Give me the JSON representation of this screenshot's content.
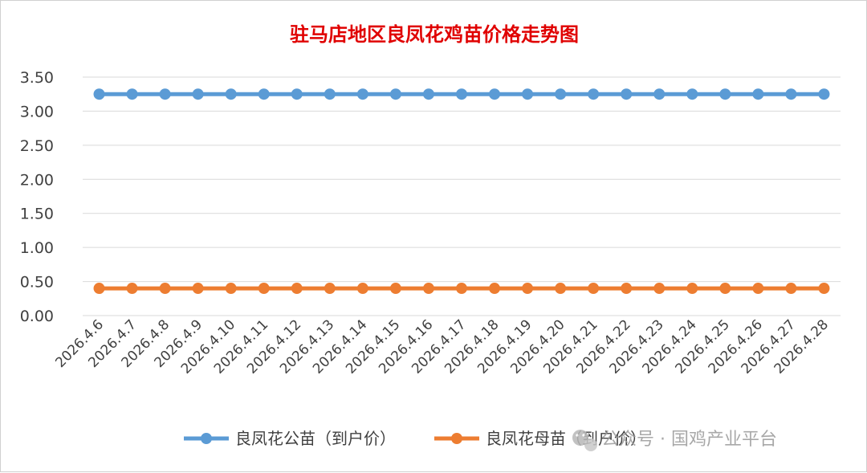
{
  "chart_data": {
    "type": "line",
    "title": "驻马店地区良凤花鸡苗价格走势图",
    "xlabel": "",
    "ylabel": "",
    "ylim": [
      0,
      3.5
    ],
    "yticks": [
      "0.00",
      "0.50",
      "1.00",
      "1.50",
      "2.00",
      "2.50",
      "3.00",
      "3.50"
    ],
    "grid": true,
    "legend_position": "bottom",
    "categories": [
      "2026.4.6",
      "2026.4.7",
      "2026.4.8",
      "2026.4.9",
      "2026.4.10",
      "2026.4.11",
      "2026.4.12",
      "2026.4.13",
      "2026.4.14",
      "2026.4.15",
      "2026.4.16",
      "2026.4.17",
      "2026.4.18",
      "2026.4.19",
      "2026.4.20",
      "2026.4.21",
      "2026.4.22",
      "2026.4.23",
      "2026.4.24",
      "2026.4.25",
      "2026.4.26",
      "2026.4.27",
      "2026.4.28"
    ],
    "series": [
      {
        "name": "良凤花公苗（到户价）",
        "color": "#5b9bd5",
        "values": [
          3.25,
          3.25,
          3.25,
          3.25,
          3.25,
          3.25,
          3.25,
          3.25,
          3.25,
          3.25,
          3.25,
          3.25,
          3.25,
          3.25,
          3.25,
          3.25,
          3.25,
          3.25,
          3.25,
          3.25,
          3.25,
          3.25,
          3.25
        ]
      },
      {
        "name": "良凤花母苗（到户价）",
        "color": "#ed7d31",
        "values": [
          0.4,
          0.4,
          0.4,
          0.4,
          0.4,
          0.4,
          0.4,
          0.4,
          0.4,
          0.4,
          0.4,
          0.4,
          0.4,
          0.4,
          0.4,
          0.4,
          0.4,
          0.4,
          0.4,
          0.4,
          0.4,
          0.4,
          0.4
        ]
      }
    ]
  },
  "watermark": {
    "text": "公众号 · 国鸡产业平台",
    "icon": "wechat-icon"
  }
}
